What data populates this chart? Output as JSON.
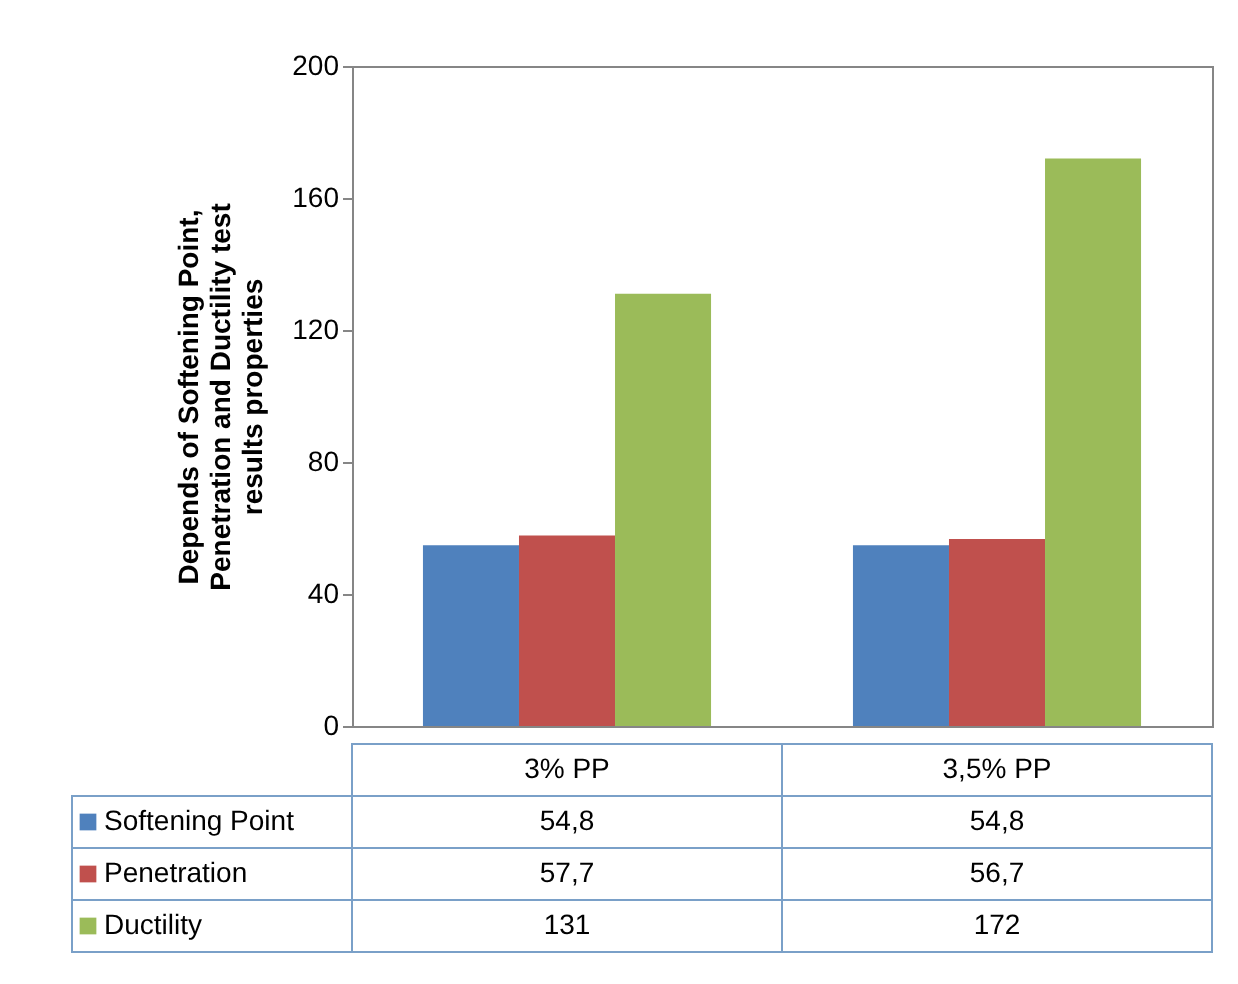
{
  "chart_data": {
    "type": "bar",
    "ylabel": "Depends of Softening Point, Penetration and Ductility test results properties",
    "categories": [
      "3% PP",
      "3,5% PP"
    ],
    "series": [
      {
        "name": "Softening Point",
        "color": "#4f81bd",
        "values": [
          54.8,
          54.8
        ],
        "value_labels": [
          "54,8",
          "54,8"
        ]
      },
      {
        "name": "Penetration",
        "color": "#c0504d",
        "values": [
          57.7,
          56.7
        ],
        "value_labels": [
          "57,7",
          "56,7"
        ]
      },
      {
        "name": "Ductility",
        "color": "#9bbb59",
        "values": [
          131,
          172
        ],
        "value_labels": [
          "131",
          "172"
        ]
      }
    ],
    "ylim": [
      0,
      200
    ],
    "yticks": [
      0,
      40,
      80,
      120,
      160,
      200
    ],
    "grid": false,
    "legend": "bottom"
  }
}
